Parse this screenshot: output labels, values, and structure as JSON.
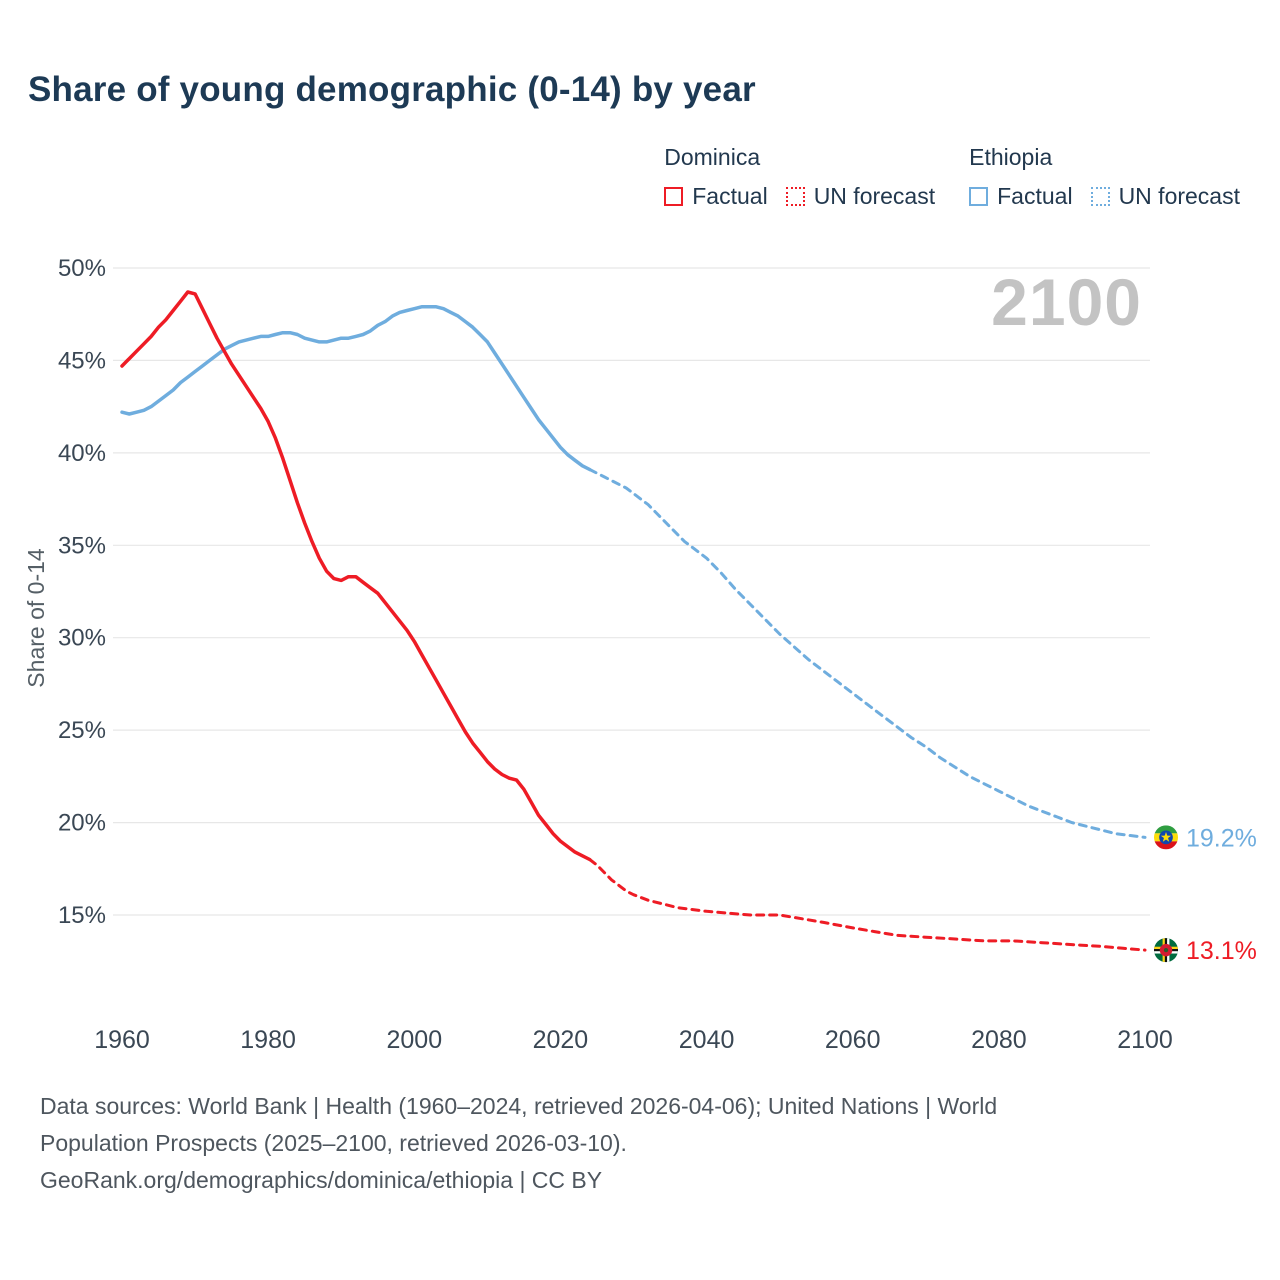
{
  "page": {
    "title": "Share of young demographic (0-14) by year",
    "watermark": "2100"
  },
  "colors": {
    "dominica": "#ee1c25",
    "ethiopia": "#6fadde",
    "grid": "#e7e7e7",
    "axis_text": "#3a4754",
    "axis_title": "#555f66",
    "title_text": "#1d3a55",
    "watermark": "#c3c3c3",
    "footer_text": "#4e565e"
  },
  "legend": {
    "groups": [
      {
        "name": "Dominica",
        "color_key": "dominica",
        "items": [
          {
            "label": "Factual",
            "style": "solid"
          },
          {
            "label": "UN forecast",
            "style": "dashed"
          }
        ]
      },
      {
        "name": "Ethiopia",
        "color_key": "ethiopia",
        "items": [
          {
            "label": "Factual",
            "style": "solid"
          },
          {
            "label": "UN forecast",
            "style": "dashed"
          }
        ]
      }
    ]
  },
  "footer": {
    "line1": "Data sources: World Bank | Health (1960–2024, retrieved 2026-04-06); United Nations | World",
    "line2": "Population Prospects (2025–2100, retrieved 2026-03-10).",
    "line3": "GeoRank.org/demographics/dominica/ethiopia | CC BY"
  },
  "chart_data": {
    "type": "line",
    "title": "Share of young demographic (0-14) by year",
    "xlabel": "",
    "ylabel": "Share of 0-14",
    "x_range": [
      1960,
      2100
    ],
    "y_range": [
      13,
      50
    ],
    "grid": "horizontal",
    "x_tick_values": [
      1960,
      1980,
      2000,
      2020,
      2040,
      2060,
      2080,
      2100
    ],
    "x_tick_labels": [
      "1960",
      "1980",
      "2000",
      "2020",
      "2040",
      "2060",
      "2080",
      "2100"
    ],
    "y_tick_values": [
      15,
      20,
      25,
      30,
      35,
      40,
      45,
      50
    ],
    "y_tick_labels": [
      "15%",
      "20%",
      "25%",
      "30%",
      "35%",
      "40%",
      "45%",
      "50%"
    ],
    "series": [
      {
        "id": "ethiopia-factual",
        "name": "Ethiopia Factual",
        "color_key": "ethiopia",
        "dash": false,
        "points": [
          [
            1960,
            42.2
          ],
          [
            1961,
            42.1
          ],
          [
            1962,
            42.2
          ],
          [
            1963,
            42.3
          ],
          [
            1964,
            42.5
          ],
          [
            1965,
            42.8
          ],
          [
            1966,
            43.1
          ],
          [
            1967,
            43.4
          ],
          [
            1968,
            43.8
          ],
          [
            1969,
            44.1
          ],
          [
            1970,
            44.4
          ],
          [
            1971,
            44.7
          ],
          [
            1972,
            45.0
          ],
          [
            1973,
            45.3
          ],
          [
            1974,
            45.6
          ],
          [
            1975,
            45.8
          ],
          [
            1976,
            46.0
          ],
          [
            1977,
            46.1
          ],
          [
            1978,
            46.2
          ],
          [
            1979,
            46.3
          ],
          [
            1980,
            46.3
          ],
          [
            1981,
            46.4
          ],
          [
            1982,
            46.5
          ],
          [
            1983,
            46.5
          ],
          [
            1984,
            46.4
          ],
          [
            1985,
            46.2
          ],
          [
            1986,
            46.1
          ],
          [
            1987,
            46.0
          ],
          [
            1988,
            46.0
          ],
          [
            1989,
            46.1
          ],
          [
            1990,
            46.2
          ],
          [
            1991,
            46.2
          ],
          [
            1992,
            46.3
          ],
          [
            1993,
            46.4
          ],
          [
            1994,
            46.6
          ],
          [
            1995,
            46.9
          ],
          [
            1996,
            47.1
          ],
          [
            1997,
            47.4
          ],
          [
            1998,
            47.6
          ],
          [
            1999,
            47.7
          ],
          [
            2000,
            47.8
          ],
          [
            2001,
            47.9
          ],
          [
            2002,
            47.9
          ],
          [
            2003,
            47.9
          ],
          [
            2004,
            47.8
          ],
          [
            2005,
            47.6
          ],
          [
            2006,
            47.4
          ],
          [
            2007,
            47.1
          ],
          [
            2008,
            46.8
          ],
          [
            2009,
            46.4
          ],
          [
            2010,
            46.0
          ],
          [
            2011,
            45.4
          ],
          [
            2012,
            44.8
          ],
          [
            2013,
            44.2
          ],
          [
            2014,
            43.6
          ],
          [
            2015,
            43.0
          ],
          [
            2016,
            42.4
          ],
          [
            2017,
            41.8
          ],
          [
            2018,
            41.3
          ],
          [
            2019,
            40.8
          ],
          [
            2020,
            40.3
          ],
          [
            2021,
            39.9
          ],
          [
            2022,
            39.6
          ],
          [
            2023,
            39.3
          ],
          [
            2024,
            39.1
          ]
        ]
      },
      {
        "id": "ethiopia-forecast",
        "name": "Ethiopia UN forecast",
        "color_key": "ethiopia",
        "dash": true,
        "flag": "ethiopia",
        "end_label": "19.2%",
        "points": [
          [
            2024,
            39.1
          ],
          [
            2025,
            38.9
          ],
          [
            2026,
            38.7
          ],
          [
            2027,
            38.5
          ],
          [
            2028,
            38.3
          ],
          [
            2029,
            38.1
          ],
          [
            2030,
            37.8
          ],
          [
            2031,
            37.5
          ],
          [
            2032,
            37.2
          ],
          [
            2033,
            36.8
          ],
          [
            2034,
            36.4
          ],
          [
            2035,
            36.0
          ],
          [
            2036,
            35.6
          ],
          [
            2037,
            35.2
          ],
          [
            2038,
            34.9
          ],
          [
            2039,
            34.6
          ],
          [
            2040,
            34.3
          ],
          [
            2042,
            33.5
          ],
          [
            2044,
            32.6
          ],
          [
            2046,
            31.8
          ],
          [
            2048,
            31.0
          ],
          [
            2050,
            30.2
          ],
          [
            2052,
            29.5
          ],
          [
            2054,
            28.8
          ],
          [
            2056,
            28.2
          ],
          [
            2058,
            27.6
          ],
          [
            2060,
            27.0
          ],
          [
            2062,
            26.4
          ],
          [
            2064,
            25.8
          ],
          [
            2066,
            25.2
          ],
          [
            2068,
            24.6
          ],
          [
            2070,
            24.1
          ],
          [
            2072,
            23.5
          ],
          [
            2074,
            23.0
          ],
          [
            2076,
            22.5
          ],
          [
            2078,
            22.1
          ],
          [
            2080,
            21.7
          ],
          [
            2082,
            21.3
          ],
          [
            2084,
            20.9
          ],
          [
            2086,
            20.6
          ],
          [
            2088,
            20.3
          ],
          [
            2090,
            20.0
          ],
          [
            2092,
            19.8
          ],
          [
            2094,
            19.6
          ],
          [
            2096,
            19.4
          ],
          [
            2098,
            19.3
          ],
          [
            2100,
            19.2
          ]
        ]
      },
      {
        "id": "dominica-factual",
        "name": "Dominica Factual",
        "color_key": "dominica",
        "dash": false,
        "points": [
          [
            1960,
            44.7
          ],
          [
            1961,
            45.1
          ],
          [
            1962,
            45.5
          ],
          [
            1963,
            45.9
          ],
          [
            1964,
            46.3
          ],
          [
            1965,
            46.8
          ],
          [
            1966,
            47.2
          ],
          [
            1967,
            47.7
          ],
          [
            1968,
            48.2
          ],
          [
            1969,
            48.7
          ],
          [
            1970,
            48.6
          ],
          [
            1971,
            47.8
          ],
          [
            1972,
            47.0
          ],
          [
            1973,
            46.2
          ],
          [
            1974,
            45.5
          ],
          [
            1975,
            44.8
          ],
          [
            1976,
            44.2
          ],
          [
            1977,
            43.6
          ],
          [
            1978,
            43.0
          ],
          [
            1979,
            42.4
          ],
          [
            1980,
            41.7
          ],
          [
            1981,
            40.8
          ],
          [
            1982,
            39.7
          ],
          [
            1983,
            38.5
          ],
          [
            1984,
            37.3
          ],
          [
            1985,
            36.2
          ],
          [
            1986,
            35.2
          ],
          [
            1987,
            34.3
          ],
          [
            1988,
            33.6
          ],
          [
            1989,
            33.2
          ],
          [
            1990,
            33.1
          ],
          [
            1991,
            33.3
          ],
          [
            1992,
            33.3
          ],
          [
            1993,
            33.0
          ],
          [
            1994,
            32.7
          ],
          [
            1995,
            32.4
          ],
          [
            1996,
            31.9
          ],
          [
            1997,
            31.4
          ],
          [
            1998,
            30.9
          ],
          [
            1999,
            30.4
          ],
          [
            2000,
            29.8
          ],
          [
            2001,
            29.1
          ],
          [
            2002,
            28.4
          ],
          [
            2003,
            27.7
          ],
          [
            2004,
            27.0
          ],
          [
            2005,
            26.3
          ],
          [
            2006,
            25.6
          ],
          [
            2007,
            24.9
          ],
          [
            2008,
            24.3
          ],
          [
            2009,
            23.8
          ],
          [
            2010,
            23.3
          ],
          [
            2011,
            22.9
          ],
          [
            2012,
            22.6
          ],
          [
            2013,
            22.4
          ],
          [
            2014,
            22.3
          ],
          [
            2015,
            21.8
          ],
          [
            2016,
            21.1
          ],
          [
            2017,
            20.4
          ],
          [
            2018,
            19.9
          ],
          [
            2019,
            19.4
          ],
          [
            2020,
            19.0
          ],
          [
            2021,
            18.7
          ],
          [
            2022,
            18.4
          ],
          [
            2023,
            18.2
          ],
          [
            2024,
            18.0
          ]
        ]
      },
      {
        "id": "dominica-forecast",
        "name": "Dominica UN forecast",
        "color_key": "dominica",
        "dash": true,
        "flag": "dominica",
        "end_label": "13.1%",
        "points": [
          [
            2024,
            18.0
          ],
          [
            2025,
            17.7
          ],
          [
            2026,
            17.3
          ],
          [
            2027,
            16.9
          ],
          [
            2028,
            16.6
          ],
          [
            2029,
            16.3
          ],
          [
            2030,
            16.1
          ],
          [
            2032,
            15.8
          ],
          [
            2034,
            15.6
          ],
          [
            2036,
            15.4
          ],
          [
            2038,
            15.3
          ],
          [
            2040,
            15.2
          ],
          [
            2043,
            15.1
          ],
          [
            2046,
            15.0
          ],
          [
            2050,
            15.0
          ],
          [
            2053,
            14.8
          ],
          [
            2056,
            14.6
          ],
          [
            2060,
            14.3
          ],
          [
            2063,
            14.1
          ],
          [
            2066,
            13.9
          ],
          [
            2070,
            13.8
          ],
          [
            2074,
            13.7
          ],
          [
            2078,
            13.6
          ],
          [
            2082,
            13.6
          ],
          [
            2086,
            13.5
          ],
          [
            2090,
            13.4
          ],
          [
            2094,
            13.3
          ],
          [
            2097,
            13.2
          ],
          [
            2100,
            13.1
          ]
        ]
      }
    ]
  }
}
